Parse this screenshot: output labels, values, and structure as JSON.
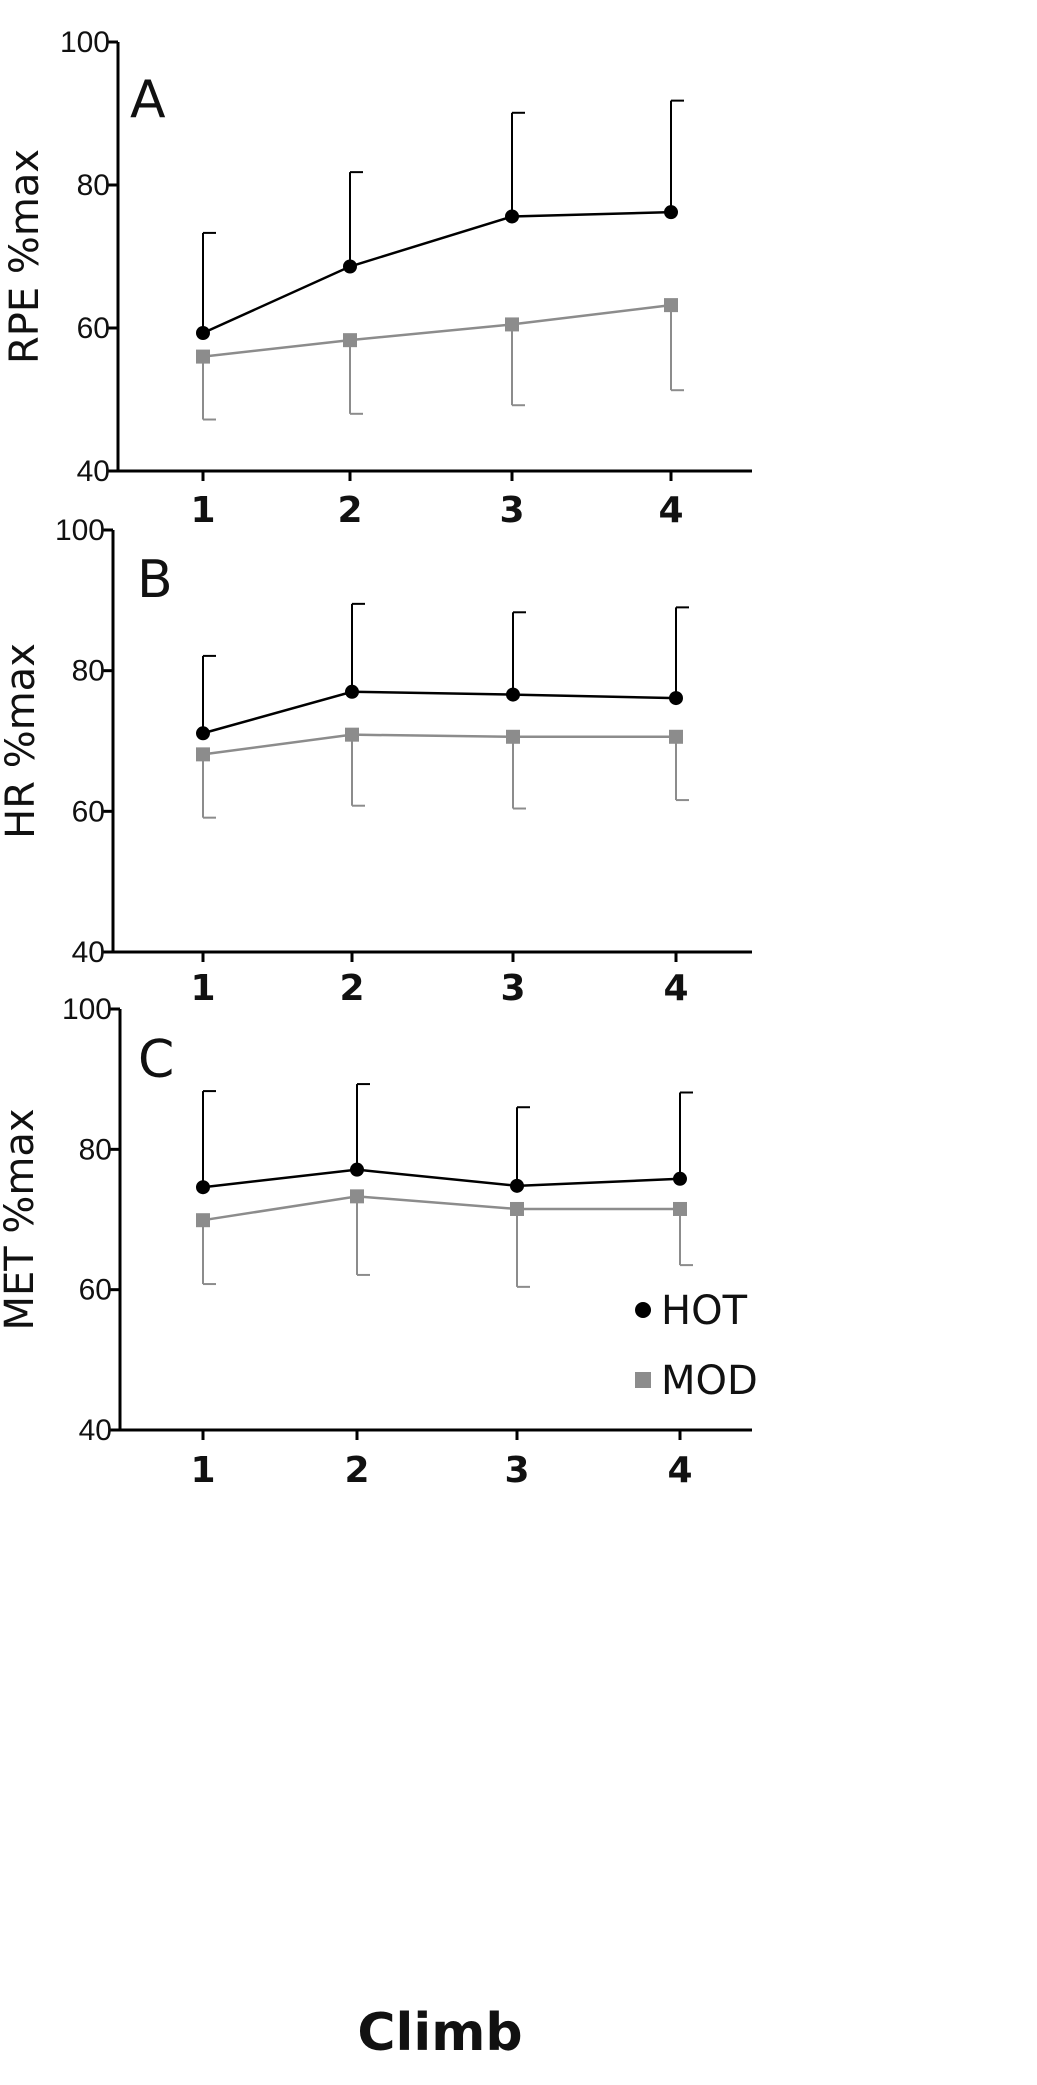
{
  "chart_data": [
    {
      "type": "line",
      "panel_label": "A",
      "ylabel": "RPE %max",
      "ylim": [
        40,
        100
      ],
      "yticks": [
        40,
        60,
        80,
        100
      ],
      "categories": [
        "1",
        "2",
        "3",
        "4"
      ],
      "series": [
        {
          "name": "HOT",
          "color": "#000000",
          "marker": "circle",
          "values": [
            59.3,
            68.6,
            75.6,
            76.2
          ],
          "error_upper": [
            73.3,
            81.8,
            90.1,
            91.8
          ]
        },
        {
          "name": "MOD",
          "color": "#8c8c8c",
          "marker": "square",
          "values": [
            56.0,
            58.3,
            60.5,
            63.2
          ],
          "error_lower": [
            47.2,
            48.0,
            49.2,
            51.3
          ]
        }
      ]
    },
    {
      "type": "line",
      "panel_label": "B",
      "ylabel": "HR %max",
      "ylim": [
        40,
        100
      ],
      "yticks": [
        40,
        60,
        80,
        100
      ],
      "categories": [
        "1",
        "2",
        "3",
        "4"
      ],
      "series": [
        {
          "name": "HOT",
          "color": "#000000",
          "marker": "circle",
          "values": [
            71.1,
            77.0,
            76.6,
            76.1
          ],
          "error_upper": [
            82.1,
            89.5,
            88.3,
            89.0
          ]
        },
        {
          "name": "MOD",
          "color": "#8c8c8c",
          "marker": "square",
          "values": [
            68.1,
            70.9,
            70.6,
            70.6
          ],
          "error_lower": [
            59.1,
            60.8,
            60.4,
            61.6
          ]
        }
      ]
    },
    {
      "type": "line",
      "panel_label": "C",
      "ylabel": "MET %max",
      "ylim": [
        40,
        100
      ],
      "yticks": [
        40,
        60,
        80,
        100
      ],
      "categories": [
        "1",
        "2",
        "3",
        "4"
      ],
      "xlabel": "Climb",
      "series": [
        {
          "name": "HOT",
          "color": "#000000",
          "marker": "circle",
          "values": [
            74.6,
            77.1,
            74.8,
            75.8
          ],
          "error_upper": [
            88.3,
            89.3,
            86.0,
            88.1
          ]
        },
        {
          "name": "MOD",
          "color": "#8c8c8c",
          "marker": "square",
          "values": [
            69.9,
            73.3,
            71.5,
            71.5
          ],
          "error_lower": [
            60.8,
            62.1,
            60.4,
            63.5
          ]
        }
      ]
    }
  ],
  "legend": {
    "placement": "bottom-right of panel C",
    "entries": [
      {
        "label": "HOT",
        "color": "#000000",
        "marker": "circle"
      },
      {
        "label": "MOD",
        "color": "#8c8c8c",
        "marker": "square"
      }
    ]
  }
}
